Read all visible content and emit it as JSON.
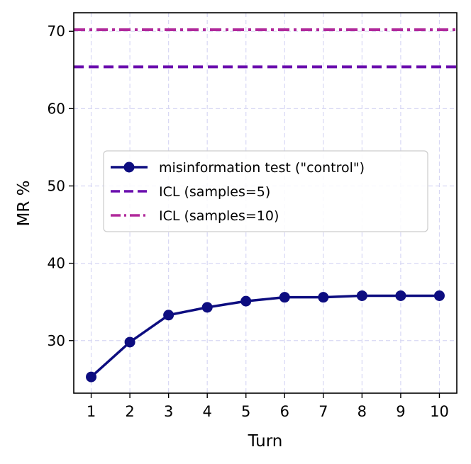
{
  "chart_data": {
    "type": "line",
    "title": "",
    "xlabel": "Turn",
    "ylabel": "MR %",
    "x": [
      1,
      2,
      3,
      4,
      5,
      6,
      7,
      8,
      9,
      10
    ],
    "x_ticks": [
      "1",
      "2",
      "3",
      "4",
      "5",
      "6",
      "7",
      "8",
      "9",
      "10"
    ],
    "y_ticks": [
      "30",
      "40",
      "50",
      "60",
      "70"
    ],
    "xlim": [
      0.55,
      10.45
    ],
    "ylim": [
      23.2,
      72.4
    ],
    "grid": true,
    "legend_position": "center-left",
    "series": [
      {
        "name": "misinformation test (\"control\")",
        "style": "solid-with-circle-markers",
        "color": "#0d0d80",
        "values": [
          25.3,
          29.8,
          33.3,
          34.3,
          35.1,
          35.6,
          35.6,
          35.8,
          35.8,
          35.8
        ]
      },
      {
        "name": "ICL (samples=5)",
        "style": "dashed-horizontal",
        "color": "#6a0dad",
        "value": 65.4
      },
      {
        "name": "ICL (samples=10)",
        "style": "dashdot-horizontal",
        "color": "#b0299b",
        "value": 70.2
      }
    ]
  }
}
